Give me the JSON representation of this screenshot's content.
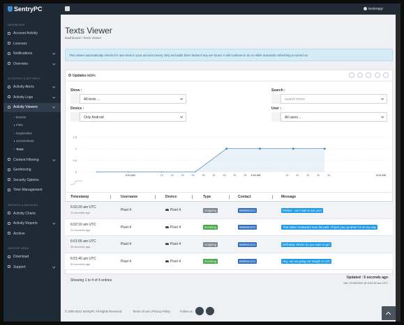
{
  "sidebar": {
    "logo": "SentryPC",
    "sections": [
      {
        "heading": "DASHBOARD",
        "items": [
          {
            "label": "Account Activity"
          },
          {
            "label": "Licenses"
          },
          {
            "label": "Notifications",
            "expandable": true
          },
          {
            "label": "Overview",
            "expandable": true
          }
        ]
      },
      {
        "heading": "ACTIVITIES & SETTINGS",
        "items": [
          {
            "label": "Activity Alerts",
            "expandable": true
          },
          {
            "label": "Activity Logs",
            "expandable": true
          },
          {
            "label": "Activity Viewers",
            "expandable": true,
            "active": true,
            "children": [
              {
                "label": "Events"
              },
              {
                "label": "Files"
              },
              {
                "label": "Keystrokes"
              },
              {
                "label": "Screenshots"
              },
              {
                "label": "Texts",
                "active": true
              }
            ]
          },
          {
            "label": "Content Filtering",
            "expandable": true
          },
          {
            "label": "Geofencing"
          },
          {
            "label": "Security Options"
          },
          {
            "label": "Time Management"
          }
        ]
      },
      {
        "heading": "REPORTS & ARCHIVES",
        "items": [
          {
            "label": "Activity Charts"
          },
          {
            "label": "Activity Reports",
            "expandable": true
          },
          {
            "label": "Archive"
          }
        ]
      },
      {
        "heading": "SUPPORT AREA",
        "items": [
          {
            "label": "Download"
          },
          {
            "label": "Support",
            "expandable": true
          }
        ]
      }
    ]
  },
  "topbar": {
    "user": "testerapp"
  },
  "header": {
    "title": "Texts Viewer",
    "breadcrumb": "Dashboard  /  Texts Viewer"
  },
  "banner": "This viewer automatically checks for new texts in your account (every 15s) and adds them below if any are found.  It will continue to do so while automatic refreshing is turned on.",
  "card": {
    "updates_label": "Updates in :",
    "updates_value": "14s",
    "filters": [
      {
        "label": "Show :",
        "value": "All texts ..."
      },
      {
        "label": "Search :",
        "placeholder": "search terms"
      },
      {
        "label": "Device :",
        "value": "Only Android"
      },
      {
        "label": "User :",
        "value": "All users ..."
      }
    ],
    "chart": {
      "x": [
        44,
        59,
        75,
        91,
        106,
        122,
        138,
        153
      ],
      "values": [
        0,
        0,
        0,
        0,
        1,
        1,
        1,
        1
      ],
      "xlim": [
        37,
        183
      ],
      "ylim": [
        0,
        1.5
      ],
      "yticks": [
        1.5,
        1,
        0.5,
        0
      ],
      "xticks": [
        {
          "value": 60,
          "label": "6:01 AM"
        },
        {
          "value": 75,
          "label": "15"
        },
        {
          "value": 80,
          "label": "20"
        },
        {
          "value": 85,
          "label": "25"
        },
        {
          "value": 90,
          "label": "30"
        },
        {
          "value": 95,
          "label": "35"
        },
        {
          "value": 100,
          "label": "40"
        },
        {
          "value": 105,
          "label": "45"
        },
        {
          "value": 110,
          "label": "50"
        },
        {
          "value": 115,
          "label": "55"
        },
        {
          "value": 120,
          "label": "6:02 AM"
        },
        {
          "value": 135,
          "label": "15"
        },
        {
          "value": 140,
          "label": "20"
        },
        {
          "value": 145,
          "label": "25"
        },
        {
          "value": 150,
          "label": "30"
        },
        {
          "value": 155,
          "label": "35"
        },
        {
          "value": 180,
          "label": "6:03 AM"
        }
      ],
      "color": "#3b82c4"
    },
    "table": {
      "columns": [
        "Timestamp",
        "Username",
        "Device",
        "Type",
        "Contact",
        "Message"
      ],
      "badge_colors": {
        "Outgoing": "#7b8591",
        "Incoming": "#45a84a"
      },
      "rows": [
        {
          "timestamp": "6:02:20 am UTC",
          "ago": "11 seconds ago",
          "username": "Pixel 4",
          "device": "Pixel 4",
          "type": "Outgoing",
          "contact": "6505551212",
          "message": "Perfect - can't wait to see you!"
        },
        {
          "timestamp": "6:02:10 am UTC",
          "ago": "21 seconds ago",
          "username": "Pixel 4",
          "device": "Pixel 4",
          "type": "Incoming",
          "contact": "6505551212",
          "message": "That Italian restaurant near the park. I'll pick you up when I'm on my way"
        },
        {
          "timestamp": "6:01:55 am UTC",
          "ago": "36 seconds ago",
          "username": "Pixel 4",
          "device": "Pixel 4",
          "type": "Outgoing",
          "contact": "6505551212",
          "message": "Definitely! Where do you want to go?"
        },
        {
          "timestamp": "6:01:40 am UTC",
          "ago": "51 seconds ago",
          "username": "Pixel 4",
          "device": "Pixel 4",
          "type": "Incoming",
          "contact": "6505551212",
          "message": "Hey, are we going out tonight or not?"
        }
      ]
    },
    "entries": "Showing 1 to 4 of 4 entries",
    "updated": "Updated : 5 seconds ago",
    "updated_at": "Sat, 07/16/2022 @ 6:02:32 am UTC"
  },
  "footer": {
    "copyright": "© 2005-2022 SentryPC All Rights Reserved.",
    "links": "Terms of Use | Privacy Policy",
    "follow": "Follow us :"
  }
}
